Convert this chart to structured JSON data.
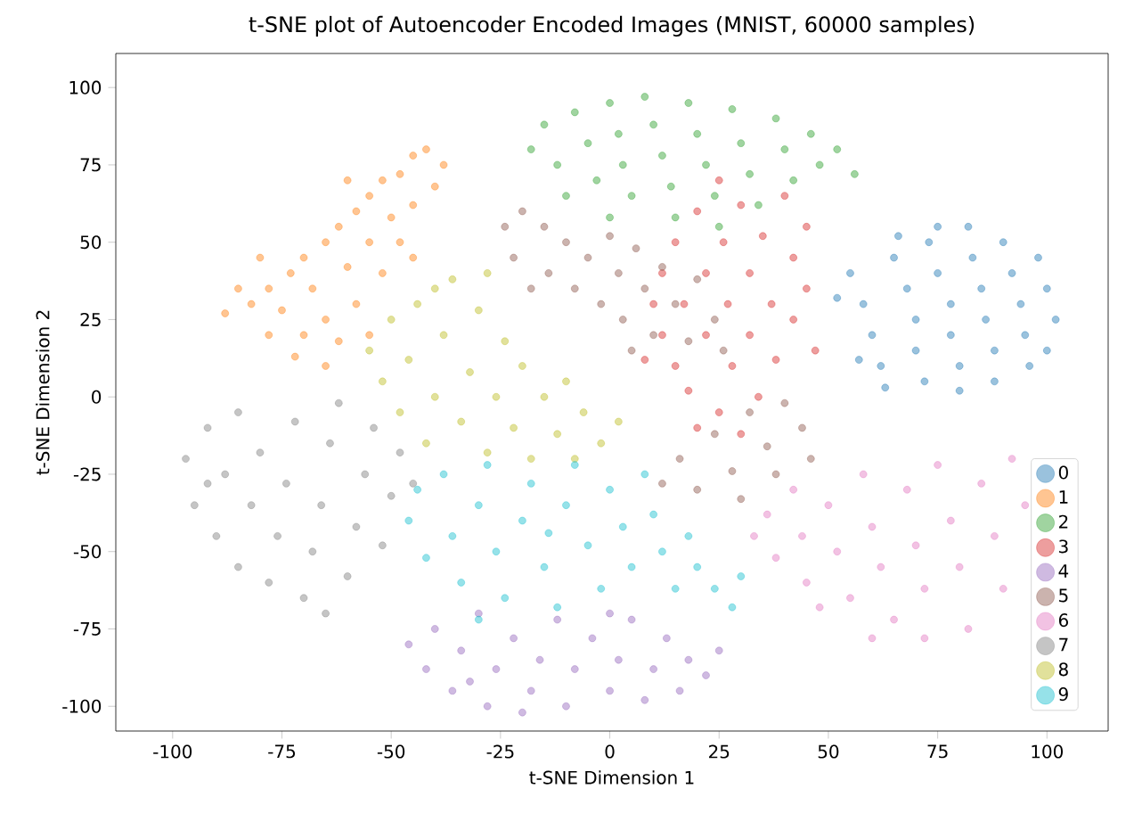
{
  "chart_data": {
    "type": "scatter",
    "title": "t-SNE plot of Autoencoder Encoded Images (MNIST, 60000 samples)",
    "xlabel": "t-SNE Dimension 1",
    "ylabel": "t-SNE Dimension 2",
    "xlim": [
      -113,
      114
    ],
    "ylim": [
      -108,
      111
    ],
    "xticks": [
      -100,
      -75,
      -50,
      -25,
      0,
      25,
      50,
      75,
      100
    ],
    "yticks": [
      -100,
      -75,
      -50,
      -25,
      0,
      25,
      50,
      75,
      100
    ],
    "legend": "bottom right",
    "grid": false,
    "series": [
      {
        "name": "0",
        "color": "#1f77b4",
        "x": [
          55,
          58,
          60,
          62,
          63,
          65,
          68,
          70,
          70,
          72,
          73,
          75,
          78,
          78,
          80,
          80,
          82,
          83,
          85,
          86,
          88,
          88,
          90,
          92,
          94,
          95,
          96,
          98,
          100,
          102,
          100,
          75,
          66,
          52,
          57
        ],
        "values": [
          40,
          30,
          20,
          10,
          3,
          45,
          35,
          25,
          15,
          5,
          50,
          40,
          30,
          20,
          10,
          2,
          55,
          45,
          35,
          25,
          15,
          5,
          50,
          40,
          30,
          20,
          10,
          45,
          35,
          25,
          15,
          55,
          52,
          32,
          12
        ]
      },
      {
        "name": "1",
        "color": "#ff7f0e",
        "x": [
          -42,
          -38,
          -45,
          -48,
          -40,
          -52,
          -55,
          -45,
          -50,
          -58,
          -62,
          -55,
          -48,
          -65,
          -70,
          -60,
          -52,
          -73,
          -78,
          -68,
          -58,
          -82,
          -88,
          -75,
          -65,
          -70,
          -78,
          -62,
          -72,
          -65,
          -85,
          -80,
          -60,
          -45,
          -55
        ],
        "values": [
          80,
          75,
          78,
          72,
          68,
          70,
          65,
          62,
          58,
          60,
          55,
          50,
          50,
          50,
          45,
          42,
          40,
          40,
          35,
          35,
          30,
          30,
          27,
          28,
          25,
          20,
          20,
          18,
          13,
          10,
          35,
          45,
          70,
          45,
          20
        ]
      },
      {
        "name": "2",
        "color": "#2ca02c",
        "x": [
          -18,
          -15,
          -12,
          -8,
          -5,
          -3,
          0,
          2,
          3,
          5,
          8,
          10,
          12,
          14,
          15,
          18,
          20,
          22,
          24,
          28,
          30,
          32,
          34,
          38,
          40,
          42,
          46,
          48,
          52,
          56,
          25,
          -10,
          0
        ],
        "values": [
          80,
          88,
          75,
          92,
          82,
          70,
          95,
          85,
          75,
          65,
          97,
          88,
          78,
          68,
          58,
          95,
          85,
          75,
          65,
          93,
          82,
          72,
          62,
          90,
          80,
          70,
          85,
          75,
          80,
          72,
          55,
          65,
          58
        ]
      },
      {
        "name": "3",
        "color": "#d62728",
        "x": [
          10,
          12,
          12,
          15,
          15,
          17,
          18,
          20,
          22,
          22,
          25,
          25,
          26,
          27,
          28,
          30,
          32,
          32,
          34,
          35,
          37,
          38,
          40,
          42,
          42,
          45,
          45,
          47,
          20,
          30,
          8
        ],
        "values": [
          30,
          20,
          40,
          10,
          50,
          30,
          2,
          60,
          40,
          20,
          -5,
          70,
          50,
          30,
          10,
          62,
          40,
          20,
          0,
          52,
          30,
          12,
          65,
          45,
          25,
          55,
          35,
          15,
          -10,
          -12,
          12
        ]
      },
      {
        "name": "4",
        "color": "#9467bd",
        "x": [
          -46,
          -42,
          -40,
          -36,
          -34,
          -30,
          -28,
          -26,
          -22,
          -18,
          -16,
          -12,
          -10,
          -8,
          -4,
          0,
          2,
          5,
          8,
          10,
          13,
          16,
          18,
          22,
          25,
          -20,
          -32,
          0
        ],
        "values": [
          -80,
          -88,
          -75,
          -95,
          -82,
          -70,
          -100,
          -88,
          -78,
          -95,
          -85,
          -72,
          -100,
          -88,
          -78,
          -95,
          -85,
          -72,
          -98,
          -88,
          -78,
          -95,
          -85,
          -90,
          -82,
          -102,
          -92,
          -70
        ]
      },
      {
        "name": "5",
        "color": "#8c564b",
        "x": [
          -24,
          -20,
          -22,
          -15,
          -14,
          -10,
          -8,
          -5,
          -2,
          0,
          2,
          3,
          6,
          8,
          10,
          12,
          15,
          18,
          20,
          24,
          26,
          -18,
          5,
          12,
          16,
          20,
          24,
          28,
          32,
          36,
          40,
          44,
          46,
          30,
          38
        ],
        "values": [
          55,
          60,
          45,
          55,
          40,
          50,
          35,
          45,
          30,
          52,
          40,
          25,
          48,
          35,
          20,
          42,
          30,
          18,
          38,
          25,
          15,
          35,
          15,
          -28,
          -20,
          -30,
          -12,
          -24,
          -5,
          -16,
          -2,
          -10,
          -20,
          -33,
          -25
        ]
      },
      {
        "name": "6",
        "color": "#e377c2",
        "x": [
          33,
          36,
          38,
          42,
          44,
          45,
          50,
          52,
          55,
          58,
          60,
          62,
          65,
          68,
          70,
          72,
          75,
          78,
          80,
          82,
          85,
          88,
          90,
          92,
          95,
          60,
          72,
          48
        ],
        "values": [
          -45,
          -38,
          -52,
          -30,
          -45,
          -60,
          -35,
          -50,
          -65,
          -25,
          -42,
          -55,
          -72,
          -30,
          -48,
          -62,
          -22,
          -40,
          -55,
          -75,
          -28,
          -45,
          -62,
          -20,
          -35,
          -78,
          -78,
          -68
        ]
      },
      {
        "name": "7",
        "color": "#7f7f7f",
        "x": [
          -97,
          -95,
          -92,
          -90,
          -88,
          -85,
          -85,
          -82,
          -80,
          -78,
          -76,
          -74,
          -72,
          -70,
          -68,
          -66,
          -64,
          -62,
          -60,
          -58,
          -56,
          -54,
          -52,
          -50,
          -48,
          -45,
          -65,
          -92
        ],
        "values": [
          -20,
          -35,
          -10,
          -45,
          -25,
          -5,
          -55,
          -35,
          -18,
          -60,
          -45,
          -28,
          -8,
          -65,
          -50,
          -35,
          -15,
          -2,
          -58,
          -42,
          -25,
          -10,
          -48,
          -32,
          -18,
          -28,
          -70,
          -28
        ]
      },
      {
        "name": "8",
        "color": "#bcbd22",
        "x": [
          -55,
          -52,
          -50,
          -48,
          -46,
          -44,
          -42,
          -40,
          -38,
          -36,
          -34,
          -32,
          -30,
          -28,
          -26,
          -24,
          -22,
          -20,
          -18,
          -15,
          -12,
          -10,
          -6,
          -2,
          2,
          -28,
          -40,
          -8
        ],
        "values": [
          15,
          5,
          25,
          -5,
          12,
          30,
          -15,
          0,
          20,
          38,
          -8,
          8,
          28,
          -18,
          0,
          18,
          -10,
          10,
          -20,
          0,
          -12,
          5,
          -5,
          -15,
          -8,
          40,
          35,
          -20
        ]
      },
      {
        "name": "9",
        "color": "#17becf",
        "x": [
          -46,
          -44,
          -42,
          -38,
          -36,
          -34,
          -30,
          -28,
          -26,
          -24,
          -20,
          -18,
          -15,
          -12,
          -10,
          -8,
          -5,
          -2,
          0,
          3,
          5,
          8,
          10,
          12,
          15,
          18,
          20,
          24,
          28,
          30,
          -30,
          -14
        ],
        "values": [
          -40,
          -30,
          -52,
          -25,
          -45,
          -60,
          -35,
          -22,
          -50,
          -65,
          -40,
          -28,
          -55,
          -68,
          -35,
          -22,
          -48,
          -62,
          -30,
          -42,
          -55,
          -25,
          -38,
          -50,
          -62,
          -45,
          -55,
          -62,
          -68,
          -58,
          -72,
          -44
        ]
      }
    ]
  }
}
